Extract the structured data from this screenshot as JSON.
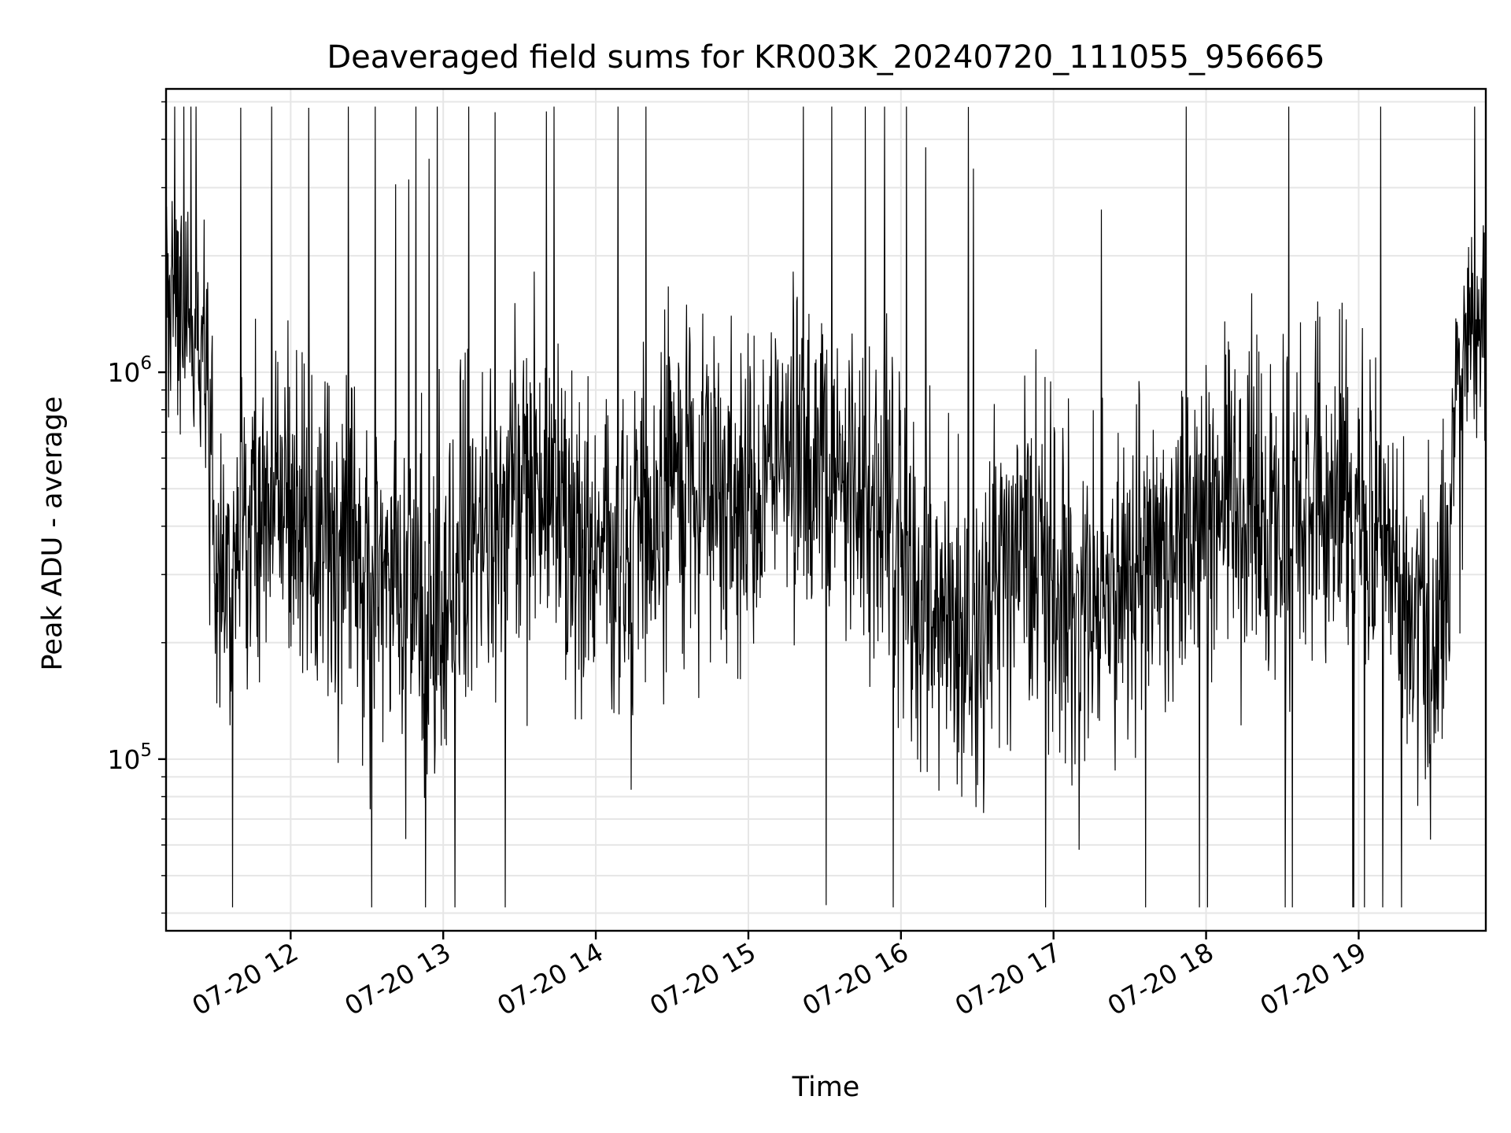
{
  "chart_data": {
    "type": "line",
    "title": "Deaveraged field sums for KR003K_20240720_111055_956665",
    "xlabel": "Time",
    "ylabel": "Peak ADU - average",
    "x_scale": "time",
    "y_scale": "log",
    "xlim": [
      "2024-07-20 11:11",
      "2024-07-20 19:50"
    ],
    "ylim": [
      36000,
      5400000
    ],
    "grid": true,
    "line_color": "#000000",
    "x_ticks": [
      {
        "t": "2024-07-20 12:00",
        "label": "07-20 12"
      },
      {
        "t": "2024-07-20 13:00",
        "label": "07-20 13"
      },
      {
        "t": "2024-07-20 14:00",
        "label": "07-20 14"
      },
      {
        "t": "2024-07-20 15:00",
        "label": "07-20 15"
      },
      {
        "t": "2024-07-20 16:00",
        "label": "07-20 16"
      },
      {
        "t": "2024-07-20 17:00",
        "label": "07-20 17"
      },
      {
        "t": "2024-07-20 18:00",
        "label": "07-20 18"
      },
      {
        "t": "2024-07-20 19:00",
        "label": "07-20 19"
      }
    ],
    "y_ticks": [
      {
        "value": 100000,
        "base": "10",
        "exp": "5"
      },
      {
        "value": 1000000,
        "base": "10",
        "exp": "6"
      }
    ],
    "series": [
      {
        "x": [
          "2024-07-20 11:11",
          "2024-07-20 11:15",
          "2024-07-20 11:20",
          "2024-07-20 11:25",
          "2024-07-20 11:30",
          "2024-07-20 11:35",
          "2024-07-20 11:40",
          "2024-07-20 11:45",
          "2024-07-20 11:50",
          "2024-07-20 11:55",
          "2024-07-20 12:00",
          "2024-07-20 12:10",
          "2024-07-20 12:20",
          "2024-07-20 12:30",
          "2024-07-20 12:40",
          "2024-07-20 12:50",
          "2024-07-20 13:00",
          "2024-07-20 13:10",
          "2024-07-20 13:20",
          "2024-07-20 13:30",
          "2024-07-20 13:40",
          "2024-07-20 13:50",
          "2024-07-20 14:00",
          "2024-07-20 14:10",
          "2024-07-20 14:20",
          "2024-07-20 14:30",
          "2024-07-20 14:40",
          "2024-07-20 14:50",
          "2024-07-20 15:00",
          "2024-07-20 15:10",
          "2024-07-20 15:20",
          "2024-07-20 15:30",
          "2024-07-20 15:40",
          "2024-07-20 15:50",
          "2024-07-20 16:00",
          "2024-07-20 16:10",
          "2024-07-20 16:20",
          "2024-07-20 16:30",
          "2024-07-20 16:40",
          "2024-07-20 16:50",
          "2024-07-20 17:00",
          "2024-07-20 17:10",
          "2024-07-20 17:20",
          "2024-07-20 17:30",
          "2024-07-20 17:40",
          "2024-07-20 17:50",
          "2024-07-20 18:00",
          "2024-07-20 18:10",
          "2024-07-20 18:20",
          "2024-07-20 18:30",
          "2024-07-20 18:40",
          "2024-07-20 18:50",
          "2024-07-20 19:00",
          "2024-07-20 19:10",
          "2024-07-20 19:20",
          "2024-07-20 19:30",
          "2024-07-20 19:35",
          "2024-07-20 19:40",
          "2024-07-20 19:45",
          "2024-07-20 19:50"
        ],
        "y": [
          1300000,
          1500000,
          1200000,
          1100000,
          380000,
          350000,
          330000,
          420000,
          460000,
          500000,
          420000,
          330000,
          290000,
          300000,
          280000,
          240000,
          280000,
          360000,
          400000,
          520000,
          470000,
          360000,
          290000,
          330000,
          350000,
          480000,
          520000,
          460000,
          500000,
          560000,
          600000,
          540000,
          560000,
          450000,
          310000,
          260000,
          210000,
          200000,
          310000,
          400000,
          330000,
          240000,
          250000,
          300000,
          320000,
          400000,
          450000,
          480000,
          420000,
          390000,
          450000,
          520000,
          410000,
          340000,
          230000,
          200000,
          280000,
          1100000,
          1300000,
          1500000
        ],
        "spread_factor": [
          2.0,
          2.0,
          1.8,
          1.9,
          2.5,
          2.5,
          2.6,
          2.6,
          2.6,
          2.6,
          2.6,
          2.6,
          2.7,
          2.7,
          2.7,
          2.7,
          2.7,
          2.6,
          2.6,
          2.6,
          2.6,
          2.6,
          2.6,
          2.6,
          2.6,
          2.5,
          2.5,
          2.5,
          2.5,
          2.5,
          2.5,
          2.5,
          2.5,
          2.5,
          2.6,
          2.7,
          2.7,
          2.7,
          2.6,
          2.6,
          2.6,
          2.6,
          2.6,
          2.6,
          2.6,
          2.5,
          2.5,
          2.5,
          2.5,
          2.5,
          2.5,
          2.5,
          2.5,
          2.6,
          2.6,
          2.5,
          2.4,
          1.6,
          1.8,
          2.0
        ]
      }
    ]
  }
}
